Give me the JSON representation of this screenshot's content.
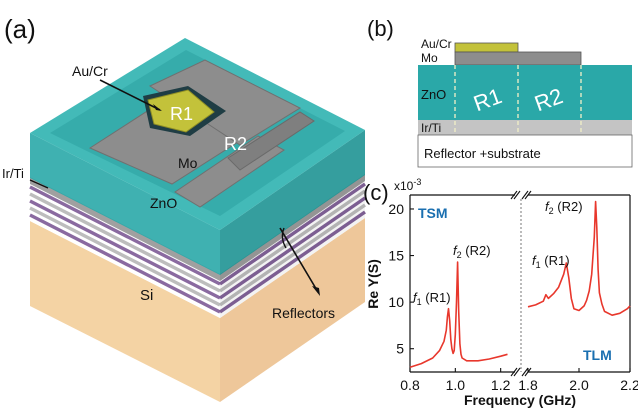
{
  "figure": {
    "panel_a_label": "(a)",
    "panel_b_label": "(b)",
    "panel_c_label": "(c)"
  },
  "panel_a": {
    "electrode": "Au/Cr",
    "r1": "R1",
    "r2": "R2",
    "mo": "Mo",
    "zno": "ZnO",
    "irti": "Ir/Ti",
    "si": "Si",
    "reflectors": "Reflectors",
    "colors": {
      "zno": "#2aa8a8",
      "gold": "#c3c23a",
      "mo": "#8d8d8d",
      "si": "#f7d9ae",
      "reflector_dark": "#8a6aa0"
    }
  },
  "panel_b": {
    "aucr": "Au/Cr",
    "mo": "Mo",
    "zno": "ZnO",
    "r1": "R1",
    "r2": "R2",
    "irti": "Ir/Ti",
    "substrate": "Reflector +substrate"
  },
  "chart_data": {
    "type": "line",
    "ylabel": "Re Y(S)",
    "xlabel": "Frequency (GHz)",
    "y_multiplier": "x10",
    "y_exponent": "-3",
    "ylim": [
      2.5,
      21.5
    ],
    "y_ticks": [
      "5",
      "10",
      "15",
      "20"
    ],
    "line_color": "#e8372c",
    "left": {
      "mode": "TSM",
      "xlim": [
        0.8,
        1.25
      ],
      "x_ticks": [
        "0.8",
        "1.0",
        "1.2"
      ],
      "annotations": [
        {
          "prefix": "f",
          "sub": "1",
          "suffix": " (R1)"
        },
        {
          "prefix": "f",
          "sub": "2",
          "suffix": " (R2)"
        }
      ],
      "x": [
        0.8,
        0.85,
        0.9,
        0.93,
        0.95,
        0.96,
        0.965,
        0.97,
        0.975,
        0.98,
        0.985,
        0.99,
        0.995,
        1.0,
        1.005,
        1.01,
        1.015,
        1.02,
        1.025,
        1.03,
        1.05,
        1.1,
        1.15,
        1.2,
        1.23
      ],
      "y": [
        3.0,
        3.4,
        4.0,
        4.8,
        5.8,
        7.0,
        8.4,
        9.3,
        8.0,
        6.0,
        5.0,
        4.5,
        4.8,
        6.5,
        10.0,
        14.3,
        9.0,
        5.5,
        4.4,
        4.0,
        3.7,
        3.7,
        3.9,
        4.2,
        4.4
      ]
    },
    "right": {
      "mode": "TLM",
      "xlim": [
        1.8,
        2.2
      ],
      "x_ticks": [
        "1.8",
        "2.0",
        "2.2"
      ],
      "annotations": [
        {
          "prefix": "f",
          "sub": "1",
          "suffix": " (R1)"
        },
        {
          "prefix": "f",
          "sub": "2",
          "suffix": " (R2)"
        }
      ],
      "x": [
        1.8,
        1.83,
        1.86,
        1.87,
        1.88,
        1.9,
        1.92,
        1.94,
        1.95,
        1.96,
        1.97,
        1.98,
        2.0,
        2.02,
        2.03,
        2.04,
        2.05,
        2.06,
        2.065,
        2.07,
        2.075,
        2.08,
        2.09,
        2.1,
        2.13,
        2.16,
        2.19,
        2.2
      ],
      "y": [
        9.5,
        9.7,
        10.1,
        10.8,
        10.4,
        10.9,
        11.6,
        13.0,
        14.2,
        12.6,
        10.4,
        9.3,
        9.1,
        9.6,
        10.2,
        11.2,
        13.0,
        17.0,
        20.8,
        18.0,
        13.5,
        11.0,
        9.8,
        9.0,
        8.6,
        8.8,
        9.3,
        9.6
      ]
    }
  }
}
